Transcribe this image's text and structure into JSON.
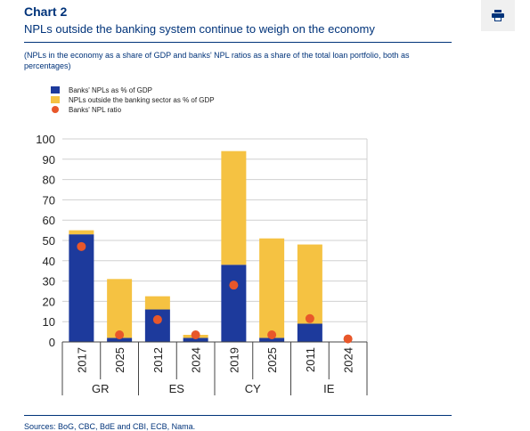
{
  "header": {
    "label": "Chart 2",
    "title": "NPLs outside the banking system continue to weigh on the economy",
    "subtitle": "(NPLs in the economy as a share of GDP and banks' NPL ratios as a share of the total loan portfolio, both as percentages)"
  },
  "toolbar": {
    "print_icon": "printer-icon"
  },
  "footer": {
    "sources": "Sources: BoG, CBC, BdE and CBI, ECB, Nama."
  },
  "colors": {
    "banks": "#1d3a9c",
    "outside": "#f5c242",
    "ratio": "#e8572a",
    "grid": "#d0d0d0",
    "brand": "#00337a"
  },
  "chart_data": {
    "type": "bar",
    "stacked": true,
    "categories": [
      "2017",
      "2025",
      "2012",
      "2024",
      "2019",
      "2025",
      "2011",
      "2024"
    ],
    "groups": [
      {
        "label": "GR",
        "span": 2
      },
      {
        "label": "ES",
        "span": 2
      },
      {
        "label": "CY",
        "span": 2
      },
      {
        "label": "IE",
        "span": 2
      }
    ],
    "series": [
      {
        "name": "Banks' NPLs as % of GDP",
        "kind": "bar",
        "values": [
          53,
          2,
          16,
          2,
          38,
          2,
          9,
          0
        ]
      },
      {
        "name": "NPLs outside the banking sector as % of GDP",
        "kind": "bar",
        "values": [
          2,
          29,
          6.5,
          1.5,
          56,
          49,
          39,
          0
        ]
      },
      {
        "name": "Banks' NPL ratio",
        "kind": "dot",
        "values": [
          47,
          3.5,
          11,
          3.5,
          28,
          3.5,
          11.5,
          1.5
        ]
      }
    ],
    "ylim": [
      0,
      100
    ],
    "yticks": [
      "0",
      "10",
      "20",
      "30",
      "40",
      "50",
      "60",
      "70",
      "80",
      "90",
      "100"
    ],
    "grid": true,
    "legend_position": "top-left"
  }
}
